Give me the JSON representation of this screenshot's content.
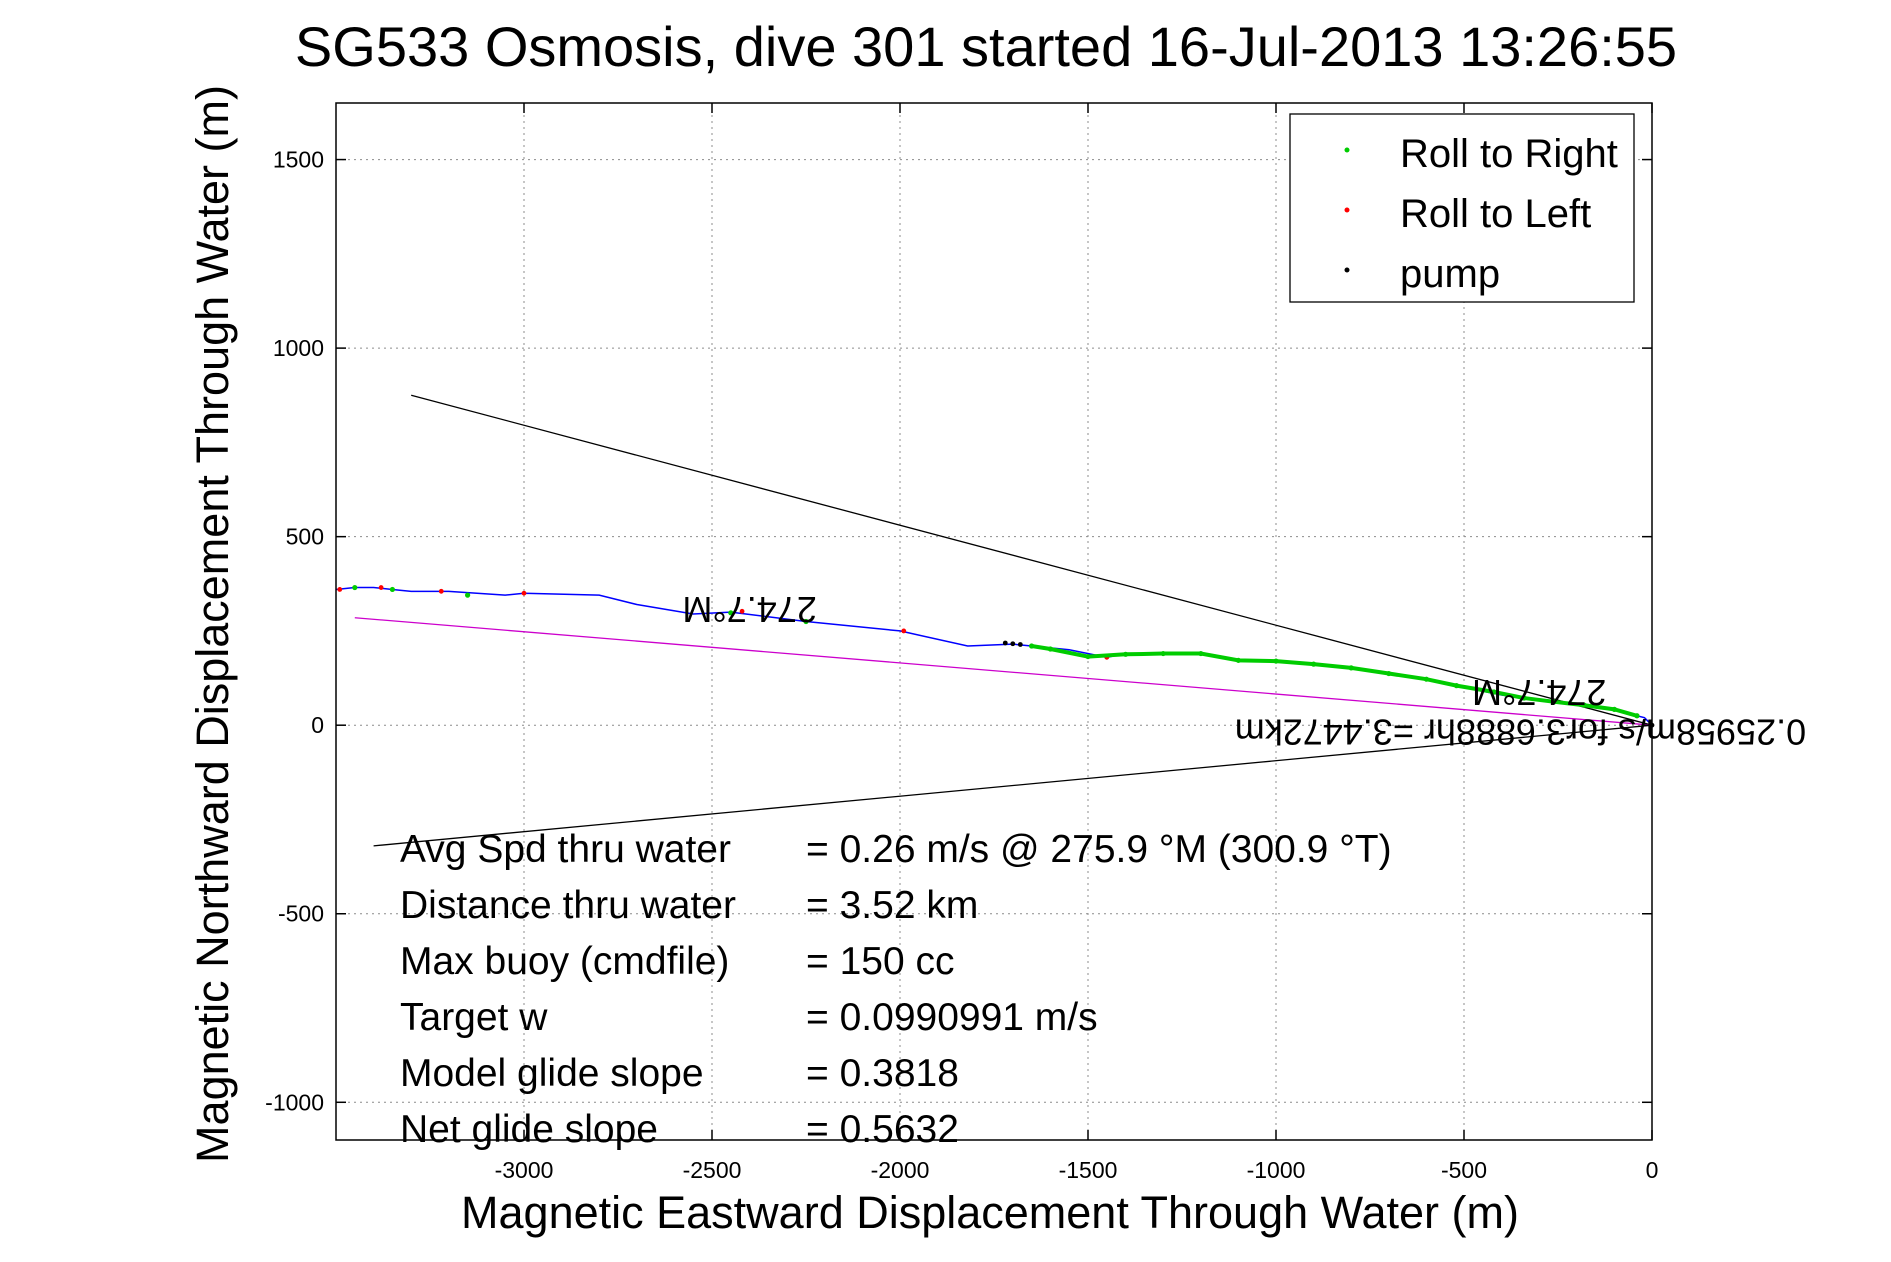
{
  "chart_data": {
    "type": "line",
    "title": "SG533 Osmosis, dive 301 started 16-Jul-2013 13:26:55",
    "xlabel": "Magnetic Eastward Displacement Through Water (m)",
    "ylabel": "Magnetic Northward Displacement Through Water (m)",
    "xlim": [
      -3500,
      0
    ],
    "ylim": [
      -1100,
      1650
    ],
    "xticks": [
      -3000,
      -2500,
      -2000,
      -1500,
      -1000,
      -500,
      0
    ],
    "yticks": [
      -1000,
      -500,
      0,
      500,
      1000,
      1500
    ],
    "grid": true,
    "legend_position": "top-right",
    "legend": [
      {
        "label": "Roll to Right",
        "color": "#00cc00"
      },
      {
        "label": "Roll to Left",
        "color": "#ff0000"
      },
      {
        "label": "pump",
        "color": "#000000"
      }
    ],
    "series": [
      {
        "name": "",
        "style": "line",
        "color": "#0000ff",
        "x": [
          0,
          -20,
          -100,
          -200,
          -300,
          -400,
          -500,
          -600,
          -700,
          -800,
          -900,
          -1000,
          -1100,
          -1200,
          -1300,
          -1400,
          -1450,
          -1550,
          -1650,
          -1700,
          -1820,
          -2000,
          -2250,
          -2450,
          -2550,
          -2700,
          -2800,
          -3000,
          -3050,
          -3200,
          -3300,
          -3350,
          -3400,
          -3450,
          -3500
        ],
        "y": [
          0,
          20,
          40,
          55,
          65,
          80,
          100,
          120,
          135,
          150,
          160,
          170,
          170,
          190,
          190,
          190,
          180,
          200,
          210,
          215,
          210,
          250,
          275,
          300,
          295,
          320,
          345,
          350,
          345,
          355,
          355,
          360,
          365,
          365,
          360
        ]
      },
      {
        "name": "Roll to Right",
        "style": "points",
        "color": "#00cc00",
        "x": [
          -40,
          -100,
          -180,
          -260,
          -340,
          -420,
          -520,
          -600,
          -700,
          -800,
          -900,
          -1000,
          -1100,
          -1200,
          -1300,
          -1400,
          -1500,
          -1600,
          -1650,
          -2250,
          -2450,
          -3150,
          -3350,
          -3450
        ],
        "y": [
          25,
          42,
          53,
          62,
          72,
          88,
          105,
          122,
          137,
          152,
          162,
          170,
          172,
          190,
          190,
          188,
          182,
          202,
          210,
          275,
          298,
          345,
          360,
          365
        ]
      },
      {
        "name": "Roll to Left",
        "style": "points",
        "color": "#ff0000",
        "x": [
          -1450,
          -1990,
          -2420,
          -3000,
          -3220,
          -3380,
          -3490
        ],
        "y": [
          180,
          250,
          302,
          350,
          355,
          365,
          360
        ]
      },
      {
        "name": "pump",
        "style": "points",
        "color": "#000000",
        "x": [
          0,
          -1680,
          -1700,
          -1720
        ],
        "y": [
          0,
          214,
          216,
          218
        ]
      }
    ],
    "reference_lines": [
      {
        "color": "#000000",
        "x": [
          0,
          -3300
        ],
        "y": [
          0,
          875
        ]
      },
      {
        "color": "#000000",
        "x": [
          0,
          -3400
        ],
        "y": [
          0,
          -320
        ]
      },
      {
        "color": "#cc00cc",
        "x": [
          0,
          -3450
        ],
        "y": [
          0,
          285
        ]
      }
    ],
    "annotations": [
      {
        "text": "274.7°M",
        "x": -2400,
        "y": 340,
        "rotation_deg": 180
      },
      {
        "text": "274.7°M",
        "x": -300,
        "y": 120,
        "rotation_deg": 180
      },
      {
        "text": "0.25958m/s for3.6888hr =3.4472km",
        "x": -350,
        "y": 15,
        "rotation_deg": 180
      }
    ],
    "stats": [
      {
        "label": "Avg Spd thru water",
        "value": "=  0.26 m/s @ 275.9 °M (300.9 °T)"
      },
      {
        "label": "Distance thru water",
        "value": "=  3.52 km"
      },
      {
        "label": "Max buoy (cmdfile)",
        "value": "= 150 cc"
      },
      {
        "label": "Target w",
        "value": "= 0.0990991 m/s"
      },
      {
        "label": "Model glide slope",
        "value": "= 0.3818"
      },
      {
        "label": "Net glide slope",
        "value": "= 0.5632"
      }
    ]
  }
}
